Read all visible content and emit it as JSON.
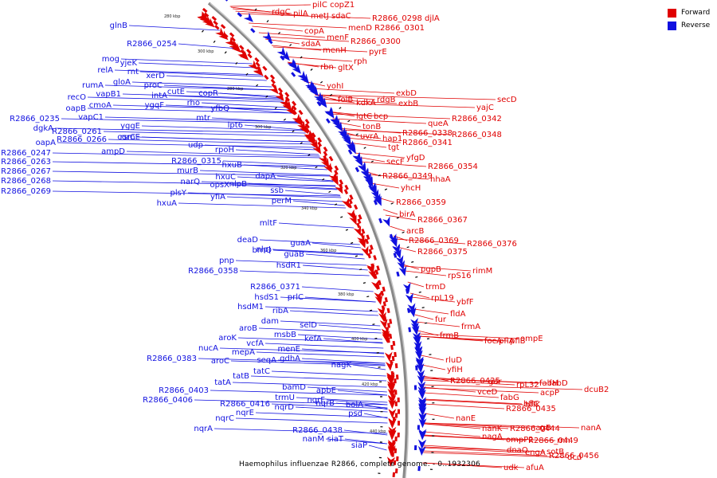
{
  "legend": {
    "forward": {
      "label": "Forward",
      "color": "#e00000"
    },
    "reverse": {
      "label": "Reverse",
      "color": "#1010e0"
    }
  },
  "caption": "Haemophilus influenzae R2866, complete genome. - 0..1932306",
  "scale_labels": [
    "280 kbp",
    "300 kbp",
    "280 kbp",
    "300 kbp",
    "320 kbp",
    "340 kbp",
    "360 kbp",
    "380 kbp",
    "400 kbp",
    "420 kbp",
    "440 kbp"
  ],
  "forward_genes": [
    "rdgC",
    "pilA",
    "pilC copZ1",
    "metJ sdaC",
    "R2866_0298 djlA",
    "copA",
    "menD R2866_0301",
    "sdaA",
    "menF",
    "R2866_0300",
    "menH",
    "pyrE",
    "rph",
    "rbn",
    "gltX",
    "yohI",
    "folB",
    "kdkA",
    "rdgB",
    "exbD",
    "exbB",
    "secD",
    "yajC",
    "lgtC",
    "bcp",
    "tonB",
    "queA",
    "R2866_0342",
    "hap1",
    "uvrA",
    "R2866_0338",
    "tgt",
    "R2866_0341",
    "R2866_0348",
    "yfgD",
    "secF",
    "R2866_0354",
    "R2866_0349",
    "nhaA",
    "yhcH",
    "R2866_0359",
    "birA",
    "R2866_0367",
    "arcB",
    "R2866_0369",
    "R2866_0376",
    "R2866_0375",
    "pgpB",
    "rpS16",
    "rimM",
    "trmD",
    "rpL19",
    "ybfF",
    "fldA",
    "fur",
    "frmA",
    "frmB",
    "focA",
    "pflB",
    "pflA",
    "ompE",
    "rluD",
    "yfiH",
    "R2866_0425",
    "gor",
    "rpL32",
    "fabH",
    "fabD",
    "vceD",
    "acpP",
    "dcuB2",
    "fabG",
    "hflK",
    "R2866_0435",
    "hflC",
    "nanE",
    "nanK",
    "R2866_0444",
    "nagB",
    "nanA",
    "nagA",
    "ompP2",
    "R2866_0449",
    "rnh",
    "dnaQ",
    "engA",
    "sotB",
    "R2866_0456",
    "dcd",
    "udk",
    "afuA"
  ],
  "reverse_genes": [
    "glnB",
    "R2866_0254",
    "mog",
    "yjeK",
    "rnt",
    "relA",
    "xerD",
    "rumA",
    "gloA",
    "proC",
    "vapB1",
    "recO",
    "intA",
    "oapB",
    "cmoA",
    "cutE",
    "ygqF",
    "R2866_0235",
    "vapC1",
    "yggE",
    "rsmE",
    "dgkA",
    "R2866_0261",
    "oapA",
    "R2866_0266",
    "corC",
    "R2866_0247",
    "ampD",
    "R2866_0263",
    "R2866_0267",
    "R2866_0268",
    "R2866_0269",
    "copR",
    "rho",
    "yfbQ",
    "mtr",
    "lpt6",
    "udp",
    "rpoH",
    "R2866_0315",
    "hxuB",
    "murB",
    "hxuC",
    "narQ",
    "opsX",
    "nlpB",
    "dapA",
    "plsY",
    "yfiA",
    "ssb",
    "hxuA",
    "perM",
    "mltF",
    "deaD",
    "guaA",
    "nlpI",
    "brnQ",
    "pnp",
    "guaB",
    "R2866_0358",
    "hsdR1",
    "R2866_0371",
    "hsdS1",
    "prlC",
    "hsdM1",
    "ribA",
    "dam",
    "aroK",
    "aroB",
    "selD",
    "msbB",
    "nucA",
    "vcfA",
    "kefA",
    "R2866_0383",
    "mepA",
    "menE",
    "aroC",
    "seqA",
    "gdhA",
    "nagK",
    "tatC",
    "tatB",
    "tatA",
    "R2866_0403",
    "bamD",
    "R2866_0406",
    "apbE",
    "trmU",
    "nqrF",
    "R2866_0416",
    "nqrD",
    "nqrB",
    "bolA",
    "nqrE",
    "nqrC",
    "psd",
    "nqrA",
    "R2866_0438",
    "nanM",
    "siaT",
    "siaP"
  ]
}
